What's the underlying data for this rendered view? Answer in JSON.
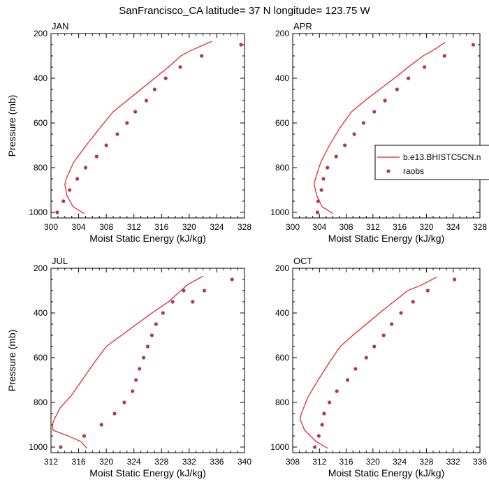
{
  "figure": {
    "title": "SanFrancisco_CA  latitude= 37 N longitude= 123.75 W"
  },
  "colors": {
    "model_line": "#e8191f",
    "obs_marker": "#b0375a"
  },
  "legend": {
    "placement": "right, inside APR panel (clipped)",
    "entries": [
      {
        "label": "b.e13.BHISTC5CN.n",
        "style": "line",
        "color": "#e8191f"
      },
      {
        "label": "raobs",
        "style": "marker",
        "color": "#b0375a"
      }
    ]
  },
  "chart_data": [
    {
      "type": "line",
      "panel_label": "JAN",
      "xlabel": "Moist Static Energy (kJ/kg)",
      "ylabel": "Pressure (mb)",
      "xlim": [
        300,
        328
      ],
      "ylim": [
        1025,
        200
      ],
      "y_reversed": true,
      "xticks": [
        300,
        304,
        308,
        312,
        316,
        320,
        324,
        328
      ],
      "yticks": [
        200,
        400,
        600,
        800,
        1000
      ],
      "series": [
        {
          "name": "b.e13.BHISTC5CN.n",
          "style": "line",
          "x": [
            304.8,
            303.2,
            302.3,
            302.0,
            302.2,
            303.3,
            305.1,
            307.0,
            309.0,
            311.0,
            313.0,
            315.0,
            317.0,
            318.8,
            320.3,
            323.3
          ],
          "y": [
            1005,
            975,
            925,
            875,
            850,
            775,
            700,
            625,
            550,
            500,
            450,
            400,
            350,
            300,
            275,
            235
          ]
        },
        {
          "name": "raobs",
          "style": "marker",
          "x": [
            300.9,
            301.8,
            302.7,
            303.8,
            305.0,
            306.6,
            308.0,
            309.6,
            311.0,
            312.2,
            313.8,
            315.0,
            316.6,
            318.7,
            321.8,
            327.5
          ],
          "y": [
            1000,
            950,
            900,
            850,
            800,
            750,
            700,
            650,
            600,
            550,
            500,
            450,
            400,
            350,
            300,
            250
          ]
        }
      ]
    },
    {
      "type": "line",
      "panel_label": "APR",
      "xlabel": "Moist Static Energy (kJ/kg)",
      "ylabel": "",
      "xlim": [
        300,
        328
      ],
      "ylim": [
        1025,
        200
      ],
      "y_reversed": true,
      "xticks": [
        300,
        304,
        308,
        312,
        316,
        320,
        324,
        328
      ],
      "yticks": [
        200,
        400,
        600,
        800,
        1000
      ],
      "series": [
        {
          "name": "b.e13.BHISTC5CN.n",
          "style": "line",
          "x": [
            306.0,
            304.4,
            303.6,
            303.2,
            303.4,
            304.2,
            305.5,
            307.0,
            308.8,
            310.8,
            313.0,
            315.2,
            317.3,
            319.5,
            321.0,
            322.8
          ],
          "y": [
            1005,
            975,
            925,
            875,
            850,
            775,
            700,
            625,
            550,
            500,
            450,
            400,
            350,
            300,
            275,
            240
          ]
        },
        {
          "name": "raobs",
          "style": "marker",
          "x": [
            303.7,
            303.8,
            304.3,
            304.6,
            305.2,
            306.5,
            307.8,
            309.2,
            310.6,
            312.2,
            313.8,
            315.6,
            317.3,
            319.7,
            322.7,
            327.0
          ],
          "y": [
            1000,
            950,
            900,
            850,
            800,
            750,
            700,
            650,
            600,
            550,
            500,
            450,
            400,
            350,
            300,
            250
          ]
        }
      ]
    },
    {
      "type": "line",
      "panel_label": "JUL",
      "xlabel": "Moist Static Energy (kJ/kg)",
      "ylabel": "Pressure (mb)",
      "xlim": [
        312,
        340
      ],
      "ylim": [
        1025,
        200
      ],
      "y_reversed": true,
      "xticks": [
        312,
        316,
        320,
        324,
        328,
        332,
        336,
        340
      ],
      "yticks": [
        200,
        400,
        600,
        800,
        1000
      ],
      "series": [
        {
          "name": "b.e13.BHISTC5CN.n",
          "style": "line",
          "x": [
            317.2,
            316.3,
            314.5,
            312.3,
            312.2,
            312.5,
            313.3,
            314.8,
            316.5,
            318.2,
            320.0,
            322.2,
            324.4,
            326.6,
            329.0,
            331.7,
            334.0
          ],
          "y": [
            1005,
            975,
            950,
            925,
            900,
            875,
            825,
            775,
            700,
            625,
            550,
            500,
            450,
            400,
            350,
            275,
            235
          ]
        },
        {
          "name": "raobs",
          "style": "marker",
          "x": [
            313.4,
            316.8,
            319.3,
            321.2,
            322.6,
            323.8,
            324.3,
            324.8,
            325.4,
            326.0,
            326.6,
            327.2,
            328.2,
            329.6,
            331.2,
            332.5,
            334.2,
            338.2
          ],
          "y": [
            1000,
            950,
            900,
            850,
            800,
            750,
            700,
            650,
            600,
            550,
            500,
            450,
            400,
            350,
            300,
            350,
            300,
            250
          ]
        }
      ]
    },
    {
      "type": "line",
      "panel_label": "OCT",
      "xlabel": "Moist Static Energy (kJ/kg)",
      "ylabel": "",
      "xlim": [
        308,
        336
      ],
      "ylim": [
        1025,
        200
      ],
      "y_reversed": true,
      "xticks": [
        308,
        312,
        316,
        320,
        324,
        328,
        332,
        336
      ],
      "yticks": [
        200,
        400,
        600,
        800,
        1000
      ],
      "series": [
        {
          "name": "b.e13.BHISTC5CN.n",
          "style": "line",
          "x": [
            313.2,
            311.5,
            309.8,
            309.1,
            309.3,
            310.3,
            311.8,
            313.4,
            315.1,
            317.0,
            319.0,
            321.0,
            323.1,
            325.2,
            327.3,
            329.5
          ],
          "y": [
            1005,
            975,
            925,
            875,
            850,
            775,
            700,
            625,
            550,
            500,
            450,
            400,
            350,
            300,
            275,
            240
          ]
        },
        {
          "name": "raobs",
          "style": "marker",
          "x": [
            311.3,
            311.9,
            312.4,
            312.7,
            313.5,
            314.6,
            316.2,
            317.4,
            319.0,
            320.2,
            321.6,
            322.8,
            324.2,
            326.0,
            328.2,
            332.2
          ],
          "y": [
            1000,
            950,
            900,
            850,
            800,
            750,
            700,
            650,
            600,
            550,
            500,
            450,
            400,
            350,
            300,
            250
          ]
        }
      ]
    }
  ]
}
